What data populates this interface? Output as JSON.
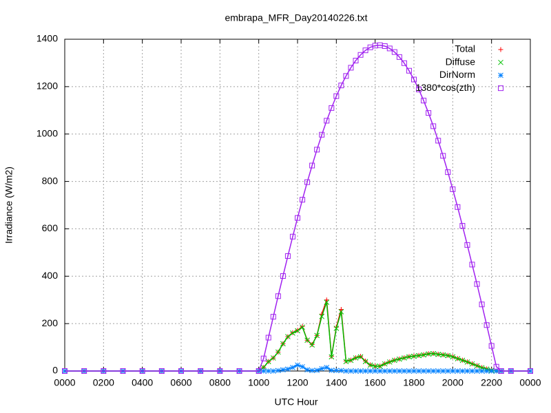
{
  "chart_data": {
    "type": "scatter",
    "title": "embrapa_MFR_Day20140226.txt",
    "xlabel": "UTC Hour",
    "ylabel": "Irradiance (W/m2)",
    "xlim": [
      0,
      24
    ],
    "ylim": [
      0,
      1400
    ],
    "xticks": [
      {
        "value": 0,
        "label": "0000"
      },
      {
        "value": 2,
        "label": "0200"
      },
      {
        "value": 4,
        "label": "0400"
      },
      {
        "value": 6,
        "label": "0600"
      },
      {
        "value": 8,
        "label": "0800"
      },
      {
        "value": 10,
        "label": "1000"
      },
      {
        "value": 12,
        "label": "1200"
      },
      {
        "value": 14,
        "label": "1400"
      },
      {
        "value": 16,
        "label": "1600"
      },
      {
        "value": 18,
        "label": "1800"
      },
      {
        "value": 20,
        "label": "2000"
      },
      {
        "value": 22,
        "label": "2200"
      },
      {
        "value": 24,
        "label": "0000"
      }
    ],
    "yticks": [
      0,
      200,
      400,
      600,
      800,
      1000,
      1200,
      1400
    ],
    "grid": true,
    "legend": "upper right",
    "x": [
      0,
      1,
      2,
      3,
      4,
      5,
      6,
      7,
      8,
      9,
      10,
      10.25,
      10.5,
      10.75,
      11,
      11.25,
      11.5,
      11.75,
      12,
      12.25,
      12.5,
      12.75,
      13,
      13.25,
      13.5,
      13.75,
      14,
      14.25,
      14.5,
      14.75,
      15,
      15.25,
      15.5,
      15.75,
      16,
      16.25,
      16.5,
      16.75,
      17,
      17.25,
      17.5,
      17.75,
      18,
      18.25,
      18.5,
      18.75,
      19,
      19.25,
      19.5,
      19.75,
      20,
      20.25,
      20.5,
      20.75,
      21,
      21.25,
      21.5,
      21.75,
      22,
      22.25,
      22.5,
      23,
      24
    ],
    "series": [
      {
        "name": "Total",
        "color": "#ff0000",
        "marker": "plus",
        "values": [
          0,
          0,
          0,
          0,
          0,
          0,
          0,
          0,
          0,
          0,
          0,
          15,
          40,
          55,
          80,
          115,
          145,
          162,
          172,
          188,
          130,
          112,
          150,
          240,
          300,
          62,
          185,
          260,
          42,
          46,
          56,
          62,
          42,
          26,
          21,
          21,
          31,
          39,
          46,
          51,
          56,
          61,
          63,
          66,
          69,
          73,
          74,
          71,
          69,
          66,
          61,
          53,
          46,
          39,
          31,
          23,
          15,
          9,
          3,
          0,
          0,
          0,
          0
        ]
      },
      {
        "name": "Diffuse",
        "color": "#00c000",
        "marker": "cross",
        "values": [
          0,
          0,
          0,
          0,
          0,
          0,
          0,
          0,
          0,
          0,
          0,
          15,
          40,
          55,
          80,
          115,
          145,
          160,
          170,
          185,
          130,
          110,
          150,
          230,
          290,
          60,
          180,
          250,
          40,
          45,
          55,
          60,
          40,
          25,
          20,
          20,
          30,
          38,
          45,
          50,
          55,
          60,
          62,
          65,
          68,
          72,
          73,
          70,
          68,
          65,
          60,
          52,
          45,
          38,
          30,
          22,
          14,
          8,
          3,
          0,
          0,
          0,
          0
        ]
      },
      {
        "name": "DirNorm",
        "color": "#0080ff",
        "marker": "star",
        "values": [
          0,
          0,
          0,
          0,
          0,
          0,
          0,
          0,
          0,
          0,
          0,
          0,
          0,
          0,
          2,
          5,
          8,
          15,
          25,
          18,
          5,
          2,
          3,
          10,
          15,
          3,
          2,
          2,
          0,
          0,
          0,
          0,
          0,
          0,
          0,
          0,
          0,
          0,
          0,
          0,
          0,
          0,
          0,
          0,
          0,
          0,
          0,
          0,
          0,
          0,
          0,
          0,
          0,
          0,
          0,
          0,
          0,
          0,
          0,
          0,
          0,
          0,
          0
        ]
      },
      {
        "name": "1380*cos(zth)",
        "color": "#a020f0",
        "marker": "square",
        "values": [
          0,
          0,
          0,
          0,
          0,
          0,
          0,
          0,
          0,
          0,
          0,
          53,
          141,
          229,
          316,
          401,
          485,
          567,
          646,
          723,
          797,
          867,
          934,
          997,
          1056,
          1110,
          1160,
          1205,
          1245,
          1280,
          1310,
          1334,
          1353,
          1366,
          1373,
          1375,
          1371,
          1361,
          1346,
          1325,
          1299,
          1267,
          1230,
          1188,
          1141,
          1089,
          1033,
          972,
          908,
          839,
          767,
          692,
          613,
          532,
          449,
          367,
          281,
          194,
          106,
          18,
          0,
          0,
          0
        ]
      }
    ]
  }
}
